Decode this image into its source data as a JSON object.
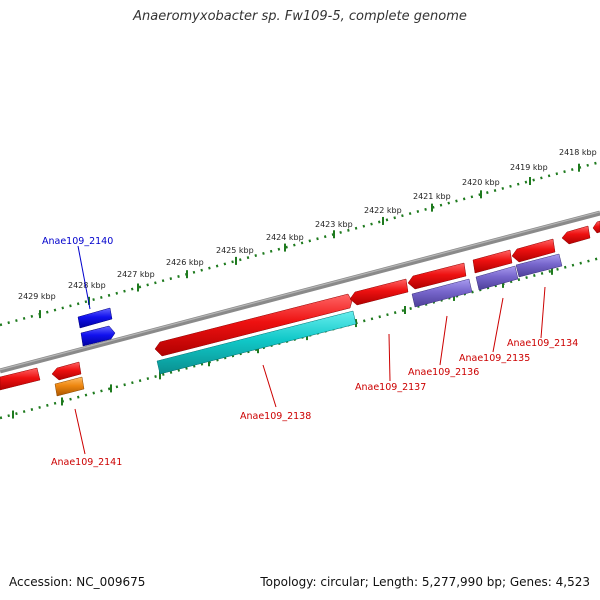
{
  "title": "Anaeromyxobacter sp. Fw109-5, complete genome",
  "footer": {
    "accession": "Accession: NC_009675",
    "summary": "Topology: circular; Length: 5,277,990 bp; Genes: 4,523"
  },
  "colors": {
    "backbone": "#7f7f7f",
    "ruler": "#1e7a1e",
    "gene_red": "#ee1111",
    "gene_cyan": "#11c9c9",
    "gene_purple": "#7766cc",
    "gene_blue": "#1111ee",
    "gene_orange": "#ee8811",
    "label_red": "#cc0000",
    "label_blue": "#0000cc"
  },
  "ruler_labels": [
    "2429 kbp",
    "2428 kbp",
    "2427 kbp",
    "2426 kbp",
    "2425 kbp",
    "2424 kbp",
    "2423 kbp",
    "2422 kbp",
    "2421 kbp",
    "2420 kbp",
    "2419 kbp",
    "2418 kbp"
  ],
  "genes": [
    {
      "id": "Anae109_2140",
      "label": "Anae109_2140",
      "color": "blue"
    },
    {
      "id": "Anae109_2141",
      "label": "Anae109_2141",
      "color": "red"
    },
    {
      "id": "Anae109_2138",
      "label": "Anae109_2138",
      "color": "red"
    },
    {
      "id": "Anae109_2137",
      "label": "Anae109_2137",
      "color": "red"
    },
    {
      "id": "Anae109_2136",
      "label": "Anae109_2136",
      "color": "red"
    },
    {
      "id": "Anae109_2135",
      "label": "Anae109_2135",
      "color": "red"
    },
    {
      "id": "Anae109_2134",
      "label": "Anae109_2134",
      "color": "red"
    }
  ]
}
